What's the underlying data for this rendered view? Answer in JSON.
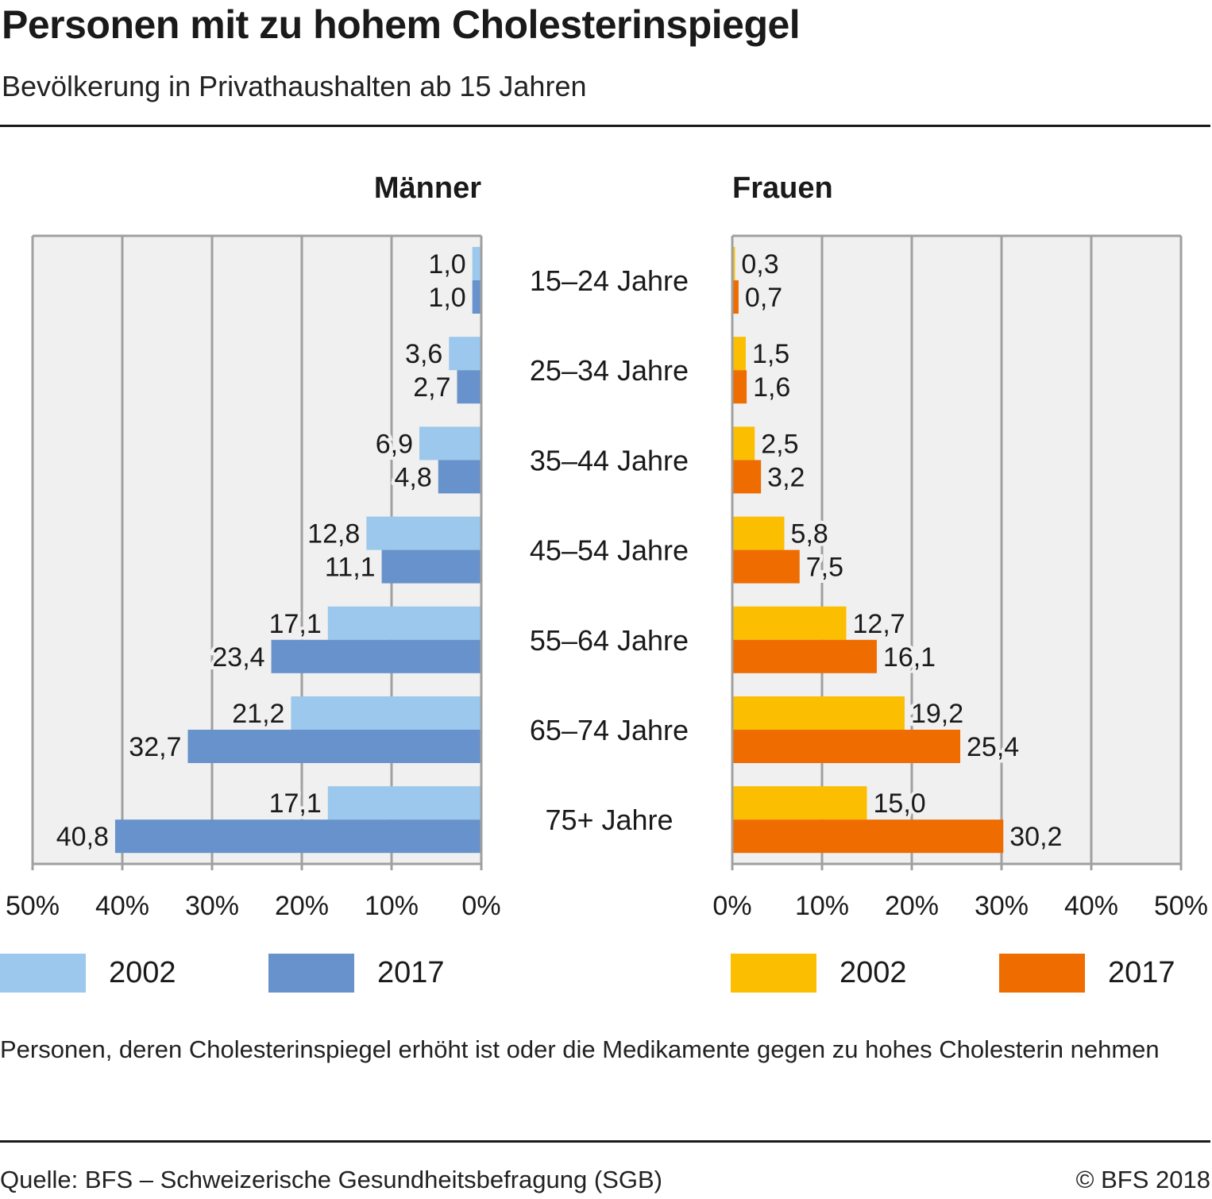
{
  "header": {
    "title": "Personen mit zu hohem Cholesterinspiegel",
    "subtitle": "Bevölkerung in Privathaushalten ab 15 Jahren"
  },
  "note": "Personen, deren Cholesterinspiegel erhöht ist oder die Medikamente gegen zu hohes Cholesterin nehmen",
  "footer": {
    "source": "Quelle: BFS – Schweizerische Gesundheitsbefragung (SGB)",
    "copyright": "© BFS 2018"
  },
  "colors": {
    "men_2002": "#9bc8ec",
    "men_2017": "#6892cb",
    "women_2002": "#fbbe00",
    "women_2017": "#ee6c00",
    "plot_bg": "#f0f0f0",
    "grid": "#a0a0a0"
  },
  "chart_data": [
    {
      "type": "bar",
      "orientation": "horizontal",
      "direction": "right-to-left",
      "panel_title": "Männer",
      "categories": [
        "15–24 Jahre",
        "25–34 Jahre",
        "35–44 Jahre",
        "45–54 Jahre",
        "55–64 Jahre",
        "65–74 Jahre",
        "75+ Jahre"
      ],
      "series": [
        {
          "name": "2002",
          "values": [
            1.0,
            3.6,
            6.9,
            12.8,
            17.1,
            21.2,
            17.1
          ],
          "labels": [
            "1,0",
            "3,6",
            "6,9",
            "12,8",
            "17,1",
            "21,2",
            "17,1"
          ]
        },
        {
          "name": "2017",
          "values": [
            1.0,
            2.7,
            4.8,
            11.1,
            23.4,
            32.7,
            40.8
          ],
          "labels": [
            "1,0",
            "2,7",
            "4,8",
            "11,1",
            "23,4",
            "32,7",
            "40,8"
          ]
        }
      ],
      "xlim": [
        0,
        50
      ],
      "xticks": [
        "50%",
        "40%",
        "30%",
        "20%",
        "10%",
        "0%"
      ],
      "xlabel": "",
      "ylabel": "",
      "grid": true,
      "legend": {
        "placement": "bottom-left",
        "entries": [
          "2002",
          "2017"
        ]
      }
    },
    {
      "type": "bar",
      "orientation": "horizontal",
      "direction": "left-to-right",
      "panel_title": "Frauen",
      "categories": [
        "15–24 Jahre",
        "25–34 Jahre",
        "35–44 Jahre",
        "45–54 Jahre",
        "55–64 Jahre",
        "65–74 Jahre",
        "75+ Jahre"
      ],
      "series": [
        {
          "name": "2002",
          "values": [
            0.3,
            1.5,
            2.5,
            5.8,
            12.7,
            19.2,
            15.0
          ],
          "labels": [
            "0,3",
            "1,5",
            "2,5",
            "5,8",
            "12,7",
            "19,2",
            "15,0"
          ]
        },
        {
          "name": "2017",
          "values": [
            0.7,
            1.6,
            3.2,
            7.5,
            16.1,
            25.4,
            30.2
          ],
          "labels": [
            "0,7",
            "1,6",
            "3,2",
            "7,5",
            "16,1",
            "25,4",
            "30,2"
          ]
        }
      ],
      "xlim": [
        0,
        50
      ],
      "xticks": [
        "0%",
        "10%",
        "20%",
        "30%",
        "40%",
        "50%"
      ],
      "xlabel": "",
      "ylabel": "",
      "grid": true,
      "legend": {
        "placement": "bottom-right",
        "entries": [
          "2002",
          "2017"
        ]
      }
    }
  ]
}
